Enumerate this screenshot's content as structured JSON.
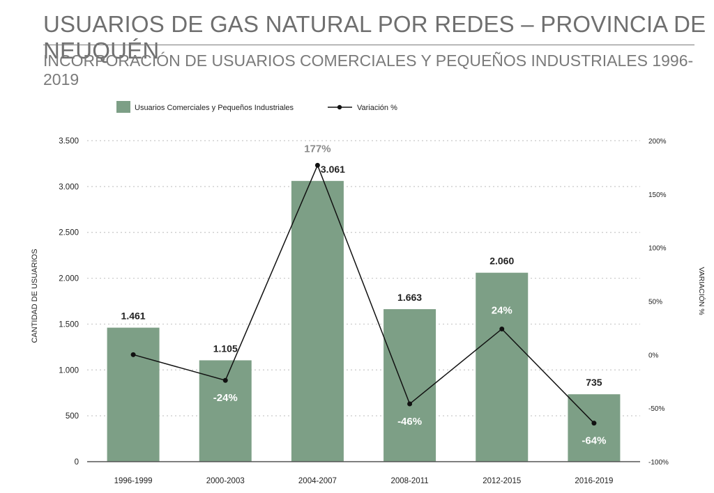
{
  "header": {
    "title": "USUARIOS DE GAS NATURAL POR REDES – PROVINCIA DE NEUQUÉN",
    "subtitle": "INCORPORACIÓN DE USUARIOS COMERCIALES Y PEQUEÑOS INDUSTRIALES 1996-2019"
  },
  "colors": {
    "bar": "#7d9f86",
    "line": "#111111",
    "grid": "#c8c8c8",
    "text": "#222222",
    "muted": "#8a8a8a"
  },
  "chart_data": {
    "type": "bar",
    "categories": [
      "1996-1999",
      "2000-2003",
      "2004-2007",
      "2008-2011",
      "2012-2015",
      "2016-2019"
    ],
    "series": [
      {
        "name": "Usuarios Comerciales y Pequeños Industriales",
        "type": "bar",
        "axis": "left",
        "values": [
          1461,
          1105,
          3061,
          1663,
          2060,
          735
        ],
        "value_labels": [
          "1.461",
          "1.105",
          "3.061",
          "1.663",
          "2.060",
          "735"
        ]
      },
      {
        "name": "Variación %",
        "type": "line",
        "axis": "right",
        "values": [
          0,
          -24,
          177,
          -46,
          24,
          -64
        ],
        "value_labels": [
          "",
          "-24%",
          "177%",
          "-46%",
          "24%",
          "-64%"
        ]
      }
    ],
    "ylabel": "CANTIDAD DE USUARIOS",
    "ylabel_right": "VARIACIÓN %",
    "ylim": [
      0,
      3500
    ],
    "ylim_right": [
      -100,
      200
    ],
    "yticks": [
      0,
      500,
      1000,
      1500,
      2000,
      2500,
      3000,
      3500
    ],
    "yticks_labels": [
      "0",
      "500",
      "1.000",
      "1.500",
      "2.000",
      "2.500",
      "3.000",
      "3.500"
    ],
    "yticks_right": [
      -100,
      -50,
      0,
      50,
      100,
      150,
      200
    ],
    "yticks_right_labels": [
      "-100%",
      "-50%",
      "0%",
      "50%",
      "100%",
      "150%",
      "200%"
    ],
    "grid": true,
    "legend": "top-left"
  }
}
